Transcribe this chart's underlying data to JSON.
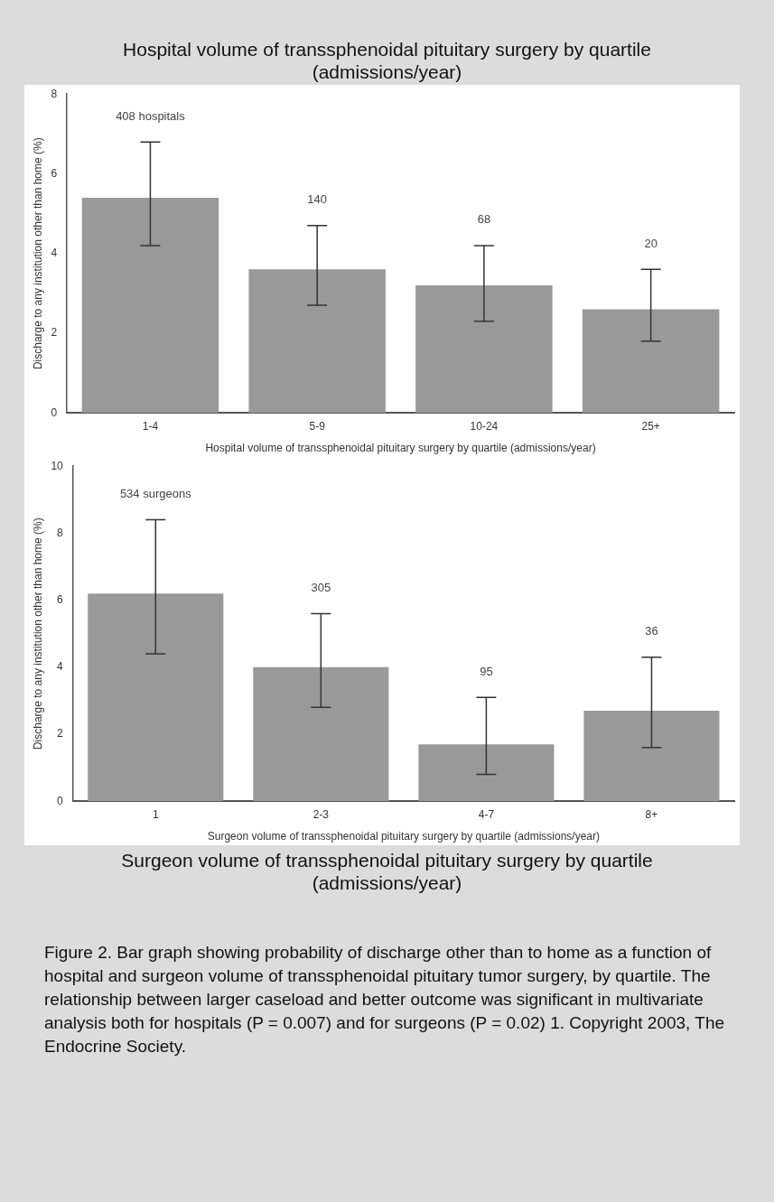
{
  "chart_data": [
    {
      "type": "bar",
      "title": "Hospital volume of transsphenoidal pituitary surgery by quartile (admissions/year)",
      "xlabel": "Hospital volume of transsphenoidal pituitary surgery by quartile (admissions/year)",
      "ylabel": "Discharge to any institution other than home (%)",
      "categories": [
        "1-4",
        "5-9",
        "10-24",
        "25+"
      ],
      "values": [
        5.4,
        3.6,
        3.2,
        2.6
      ],
      "errors": [
        [
          4.2,
          6.8
        ],
        [
          2.7,
          4.7
        ],
        [
          2.3,
          4.2
        ],
        [
          1.8,
          3.6
        ]
      ],
      "color": "#999999",
      "ylim": [
        0,
        8
      ],
      "yticks": [
        0,
        2,
        4,
        6,
        8
      ],
      "grid": false,
      "annotations": [
        "408 hospitals",
        "140",
        "68",
        "20"
      ]
    },
    {
      "type": "bar",
      "title": "Surgeon volume of transsphenoidal pituitary surgery by quartile (admissions/year)",
      "xlabel": "Surgeon volume of transsphenoidal pituitary surgery by quartile (admissions/year)",
      "ylabel": "Discharge to any institution other than home (%)",
      "categories": [
        "1",
        "2-3",
        "4-7",
        "8+"
      ],
      "values": [
        6.2,
        4.0,
        1.7,
        2.7
      ],
      "errors": [
        [
          4.4,
          8.4
        ],
        [
          2.8,
          5.6
        ],
        [
          0.8,
          3.1
        ],
        [
          1.6,
          4.3
        ]
      ],
      "color": "#999999",
      "ylim": [
        0,
        10
      ],
      "yticks": [
        0,
        2,
        4,
        6,
        8,
        10
      ],
      "grid": false,
      "annotations": [
        "534 surgeons",
        "305",
        "95",
        "36",
        "Figure 2. Bar graph showing probability of discharge other than to home as a function of hospital and surgeon volume of transsphenoidal pituitary tumor surgery, by quartile. The relationship between larger caseload and better outcome was significant in multivariate analysis both for hospitals (P = 0.007) and for surgeons (P = 0.02) 1. Copyright 2003, The Endocrine Society."
      ]
    }
  ]
}
